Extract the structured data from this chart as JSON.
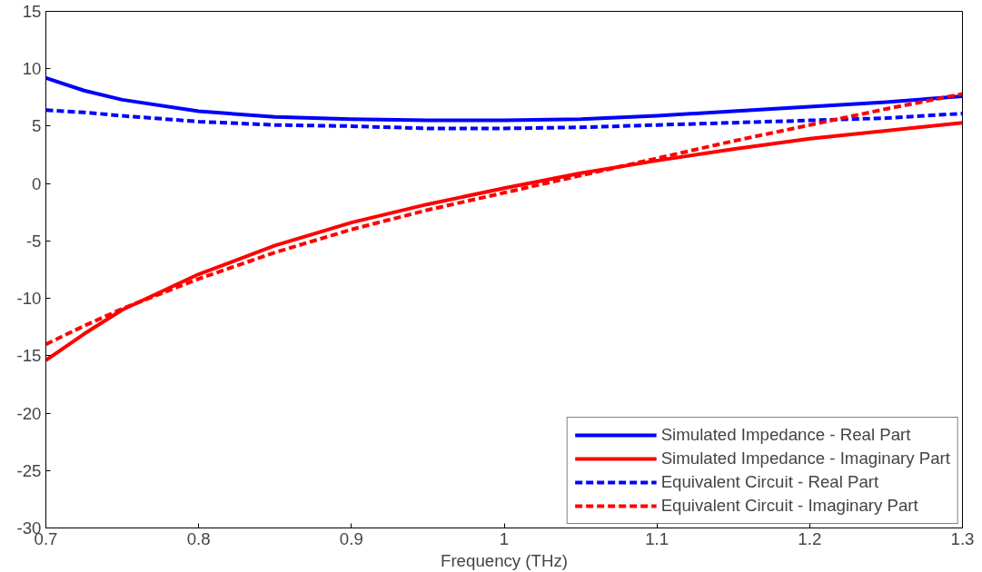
{
  "chart_data": {
    "type": "line",
    "xlabel": "Frequency (THz)",
    "xlim": [
      0.7,
      1.3
    ],
    "xticks": [
      0.7,
      0.8,
      0.9,
      1,
      1.1,
      1.2,
      1.3
    ],
    "ylim": [
      -30,
      15
    ],
    "yticks": [
      -30,
      -25,
      -20,
      -15,
      -10,
      -5,
      0,
      5,
      10,
      15
    ],
    "grid": false,
    "legend": "bottom right",
    "x": [
      0.7,
      0.725,
      0.75,
      0.8,
      0.85,
      0.9,
      0.95,
      1.0,
      1.05,
      1.1,
      1.15,
      1.2,
      1.25,
      1.3
    ],
    "series": [
      {
        "name": "Simulated Impedance - Real Part",
        "color": "#0000ff",
        "line_style": "solid",
        "values": [
          9.2,
          8.1,
          7.3,
          6.3,
          5.8,
          5.6,
          5.5,
          5.5,
          5.6,
          5.9,
          6.3,
          6.7,
          7.1,
          7.6
        ]
      },
      {
        "name": "Simulated Impedance - Imaginary Part",
        "color": "#ff0000",
        "line_style": "solid",
        "values": [
          -15.4,
          -13.1,
          -11.0,
          -7.9,
          -5.4,
          -3.4,
          -1.8,
          -0.4,
          0.9,
          2.0,
          3.0,
          3.9,
          4.6,
          5.3
        ]
      },
      {
        "name": "Equivalent Circuit - Real Part",
        "color": "#0000ff",
        "line_style": "dashed",
        "values": [
          6.4,
          6.2,
          5.9,
          5.4,
          5.1,
          5.0,
          4.8,
          4.8,
          4.9,
          5.1,
          5.3,
          5.5,
          5.7,
          6.1
        ]
      },
      {
        "name": "Equivalent Circuit - Imaginary Part",
        "color": "#ff0000",
        "line_style": "dashed",
        "values": [
          -14.0,
          -12.4,
          -10.9,
          -8.3,
          -6.0,
          -4.0,
          -2.3,
          -0.8,
          0.7,
          2.2,
          3.7,
          5.1,
          6.5,
          7.8
        ]
      }
    ]
  }
}
